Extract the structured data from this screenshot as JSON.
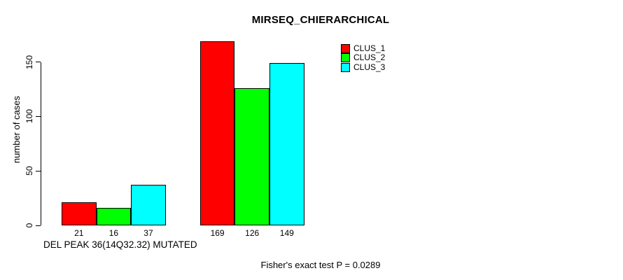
{
  "chart_data": {
    "type": "bar",
    "title": "MIRSEQ_CHIERARCHICAL",
    "xlabel": "DEL PEAK 36(14Q32.32) MUTATED",
    "ylabel": "number of cases",
    "categories": [
      "",
      ""
    ],
    "series": [
      {
        "name": "CLUS_1",
        "color": "#ff0000",
        "values": [
          21,
          169
        ]
      },
      {
        "name": "CLUS_2",
        "color": "#00ff00",
        "values": [
          16,
          126
        ]
      },
      {
        "name": "CLUS_3",
        "color": "#00ffff",
        "values": [
          37,
          149
        ]
      }
    ],
    "bar_value_labels": [
      [
        "21",
        "16",
        "37"
      ],
      [
        "169",
        "126",
        "149"
      ]
    ],
    "yticks": [
      0,
      50,
      100,
      150
    ],
    "ylim": [
      0,
      170
    ],
    "grid": false,
    "legend_position": "top-right",
    "legend_entries": [
      "CLUS_1",
      "CLUS_2",
      "CLUS_3"
    ],
    "annotation": "Fisher's exact test P = 0.0289"
  }
}
